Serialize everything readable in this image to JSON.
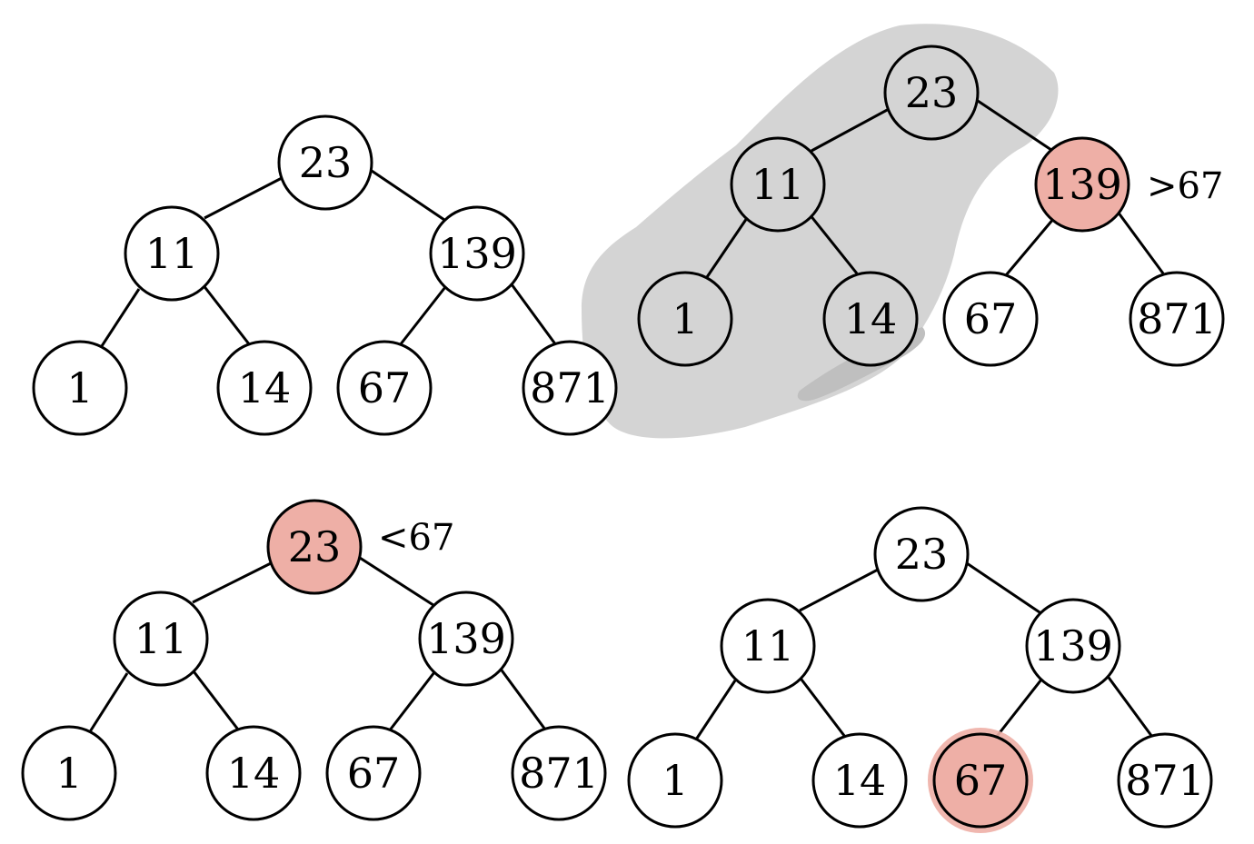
{
  "colors": {
    "stroke": "#000000",
    "fill": "#ffffff",
    "highlight": "#eeafa6",
    "shadow": "#d4d4d4",
    "shadow_dark": "#bfbfbf"
  },
  "trees": [
    {
      "id": "tree-1",
      "nodes": [
        {
          "label": "23",
          "highlighted": false
        },
        {
          "label": "11",
          "highlighted": false
        },
        {
          "label": "139",
          "highlighted": false
        },
        {
          "label": "1",
          "highlighted": false
        },
        {
          "label": "14",
          "highlighted": false
        },
        {
          "label": "67",
          "highlighted": false
        },
        {
          "label": "871",
          "highlighted": false
        }
      ],
      "annotation": ""
    },
    {
      "id": "tree-2",
      "nodes": [
        {
          "label": "23",
          "highlighted": false
        },
        {
          "label": "11",
          "highlighted": false
        },
        {
          "label": "139",
          "highlighted": true
        },
        {
          "label": "1",
          "highlighted": false
        },
        {
          "label": "14",
          "highlighted": false
        },
        {
          "label": "67",
          "highlighted": false
        },
        {
          "label": "871",
          "highlighted": false
        }
      ],
      "annotation": ">67"
    },
    {
      "id": "tree-3",
      "nodes": [
        {
          "label": "23",
          "highlighted": true
        },
        {
          "label": "11",
          "highlighted": false
        },
        {
          "label": "139",
          "highlighted": false
        },
        {
          "label": "1",
          "highlighted": false
        },
        {
          "label": "14",
          "highlighted": false
        },
        {
          "label": "67",
          "highlighted": false
        },
        {
          "label": "871",
          "highlighted": false
        }
      ],
      "annotation": "<67"
    },
    {
      "id": "tree-4",
      "nodes": [
        {
          "label": "23",
          "highlighted": false
        },
        {
          "label": "11",
          "highlighted": false
        },
        {
          "label": "139",
          "highlighted": false
        },
        {
          "label": "1",
          "highlighted": false
        },
        {
          "label": "14",
          "highlighted": false
        },
        {
          "label": "67",
          "highlighted": true
        },
        {
          "label": "871",
          "highlighted": false
        }
      ],
      "annotation": ""
    }
  ]
}
